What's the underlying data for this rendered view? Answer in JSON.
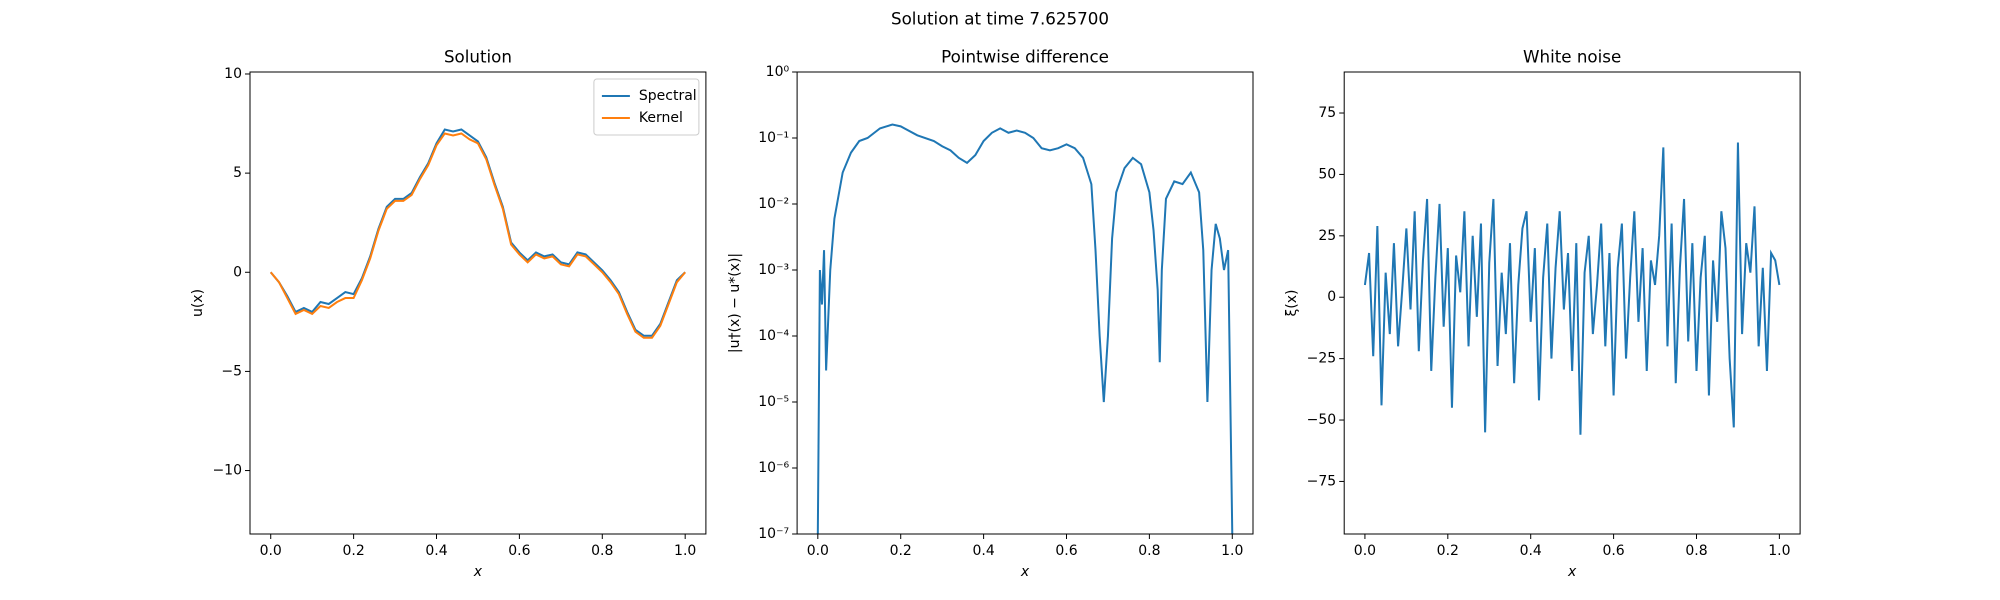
{
  "title": "Solution at time 7.625700",
  "chart_data": [
    {
      "type": "line",
      "title": "Solution",
      "xlabel": "x",
      "ylabel": "u(x)",
      "legend": "upper right",
      "xlim": [
        -0.05,
        1.05
      ],
      "ylim": [
        -13.2,
        10.1
      ],
      "xticks": [
        {
          "value": 0,
          "label": "0.0"
        },
        0.2,
        0.4,
        0.6,
        0.8,
        {
          "value": 1,
          "label": "1.0"
        }
      ],
      "yticks": [
        {
          "value": -10,
          "label": "−10"
        },
        {
          "value": -5,
          "label": "−5"
        },
        0,
        5,
        10
      ],
      "x": [
        0,
        0.02,
        0.04,
        0.06,
        0.08,
        0.1,
        0.12,
        0.14,
        0.16,
        0.18,
        0.2,
        0.22,
        0.24,
        0.26,
        0.28,
        0.3,
        0.32,
        0.34,
        0.36,
        0.38,
        0.4,
        0.42,
        0.44,
        0.46,
        0.48,
        0.5,
        0.52,
        0.54,
        0.56,
        0.58,
        0.6,
        0.62,
        0.64,
        0.66,
        0.68,
        0.7,
        0.72,
        0.74,
        0.76,
        0.78,
        0.8,
        0.82,
        0.84,
        0.86,
        0.88,
        0.9,
        0.92,
        0.94,
        0.96,
        0.98,
        1
      ],
      "series": [
        {
          "name": "Spectral",
          "color": "#1f77b4",
          "values": [
            0,
            -0.5,
            -1.2,
            -2.0,
            -1.8,
            -2.0,
            -1.5,
            -1.6,
            -1.3,
            -1.0,
            -1.1,
            -0.3,
            0.8,
            2.2,
            3.3,
            3.7,
            3.7,
            4.0,
            4.8,
            5.5,
            6.5,
            7.2,
            7.1,
            7.2,
            6.9,
            6.6,
            5.8,
            4.5,
            3.3,
            1.5,
            1.0,
            0.6,
            1.0,
            0.8,
            0.9,
            0.5,
            0.4,
            1.0,
            0.9,
            0.5,
            0.1,
            -0.4,
            -1.0,
            -2.0,
            -2.9,
            -3.2,
            -3.2,
            -2.6,
            -1.5,
            -0.4,
            0
          ]
        },
        {
          "name": "Kernel",
          "color": "#ff7f0e",
          "values": [
            0,
            -0.5,
            -1.3,
            -2.1,
            -1.9,
            -2.1,
            -1.7,
            -1.8,
            -1.5,
            -1.3,
            -1.3,
            -0.4,
            0.7,
            2.1,
            3.2,
            3.6,
            3.6,
            3.9,
            4.7,
            5.4,
            6.4,
            7.0,
            6.9,
            7.0,
            6.7,
            6.5,
            5.7,
            4.4,
            3.2,
            1.4,
            0.9,
            0.5,
            0.9,
            0.7,
            0.8,
            0.4,
            0.3,
            0.9,
            0.8,
            0.4,
            0.0,
            -0.5,
            -1.1,
            -2.1,
            -3.0,
            -3.3,
            -3.3,
            -2.7,
            -1.6,
            -0.5,
            0
          ]
        }
      ]
    },
    {
      "type": "line",
      "title": "Pointwise difference",
      "xlabel": "x",
      "ylabel": "|u†(x) − u*(x)|",
      "yscale": "log",
      "color": "#1f77b4",
      "xlim": [
        -0.05,
        1.05
      ],
      "ylim": [
        1e-07,
        1
      ],
      "xticks": [
        {
          "value": 0,
          "label": "0.0"
        },
        0.2,
        0.4,
        0.6,
        0.8,
        {
          "value": 1,
          "label": "1.0"
        }
      ],
      "yticks": [
        {
          "value": 1e-07,
          "label": "10⁻⁷"
        },
        {
          "value": 1e-06,
          "label": "10⁻⁶"
        },
        {
          "value": 1e-05,
          "label": "10⁻⁵"
        },
        {
          "value": 0.0001,
          "label": "10⁻⁴"
        },
        {
          "value": 0.001,
          "label": "10⁻³"
        },
        {
          "value": 0.01,
          "label": "10⁻²"
        },
        {
          "value": 0.1,
          "label": "10⁻¹"
        },
        {
          "value": 1,
          "label": "10⁰"
        }
      ],
      "x": [
        0,
        0.005,
        0.01,
        0.015,
        0.02,
        0.03,
        0.04,
        0.06,
        0.08,
        0.1,
        0.12,
        0.15,
        0.18,
        0.2,
        0.24,
        0.28,
        0.3,
        0.32,
        0.34,
        0.36,
        0.38,
        0.4,
        0.42,
        0.44,
        0.46,
        0.48,
        0.5,
        0.52,
        0.54,
        0.56,
        0.58,
        0.6,
        0.62,
        0.64,
        0.66,
        0.67,
        0.68,
        0.69,
        0.7,
        0.71,
        0.72,
        0.74,
        0.76,
        0.78,
        0.8,
        0.81,
        0.82,
        0.825,
        0.83,
        0.84,
        0.86,
        0.88,
        0.9,
        0.92,
        0.93,
        0.94,
        0.95,
        0.96,
        0.97,
        0.98,
        0.99,
        1
      ],
      "values": [
        1e-07,
        0.001,
        0.0003,
        0.002,
        3e-05,
        0.001,
        0.006,
        0.03,
        0.06,
        0.09,
        0.1,
        0.14,
        0.16,
        0.15,
        0.11,
        0.09,
        0.075,
        0.065,
        0.05,
        0.042,
        0.055,
        0.09,
        0.12,
        0.14,
        0.12,
        0.13,
        0.12,
        0.1,
        0.07,
        0.065,
        0.07,
        0.08,
        0.07,
        0.05,
        0.02,
        0.002,
        0.0001,
        1e-05,
        0.0001,
        0.003,
        0.015,
        0.035,
        0.05,
        0.04,
        0.015,
        0.004,
        0.0005,
        4e-05,
        0.001,
        0.012,
        0.022,
        0.02,
        0.03,
        0.015,
        0.002,
        1e-05,
        0.001,
        0.005,
        0.003,
        0.001,
        0.002,
        1e-07
      ]
    },
    {
      "type": "line",
      "title": "White noise",
      "xlabel": "x",
      "ylabel": "ξ(x)",
      "color": "#1f77b4",
      "xlim": [
        -0.05,
        1.05
      ],
      "ylim": [
        -96.4,
        91.7
      ],
      "xticks": [
        {
          "value": 0,
          "label": "0.0"
        },
        0.2,
        0.4,
        0.6,
        0.8,
        {
          "value": 1,
          "label": "1.0"
        }
      ],
      "yticks": [
        {
          "value": -75,
          "label": "−75"
        },
        {
          "value": -50,
          "label": "−50"
        },
        {
          "value": -25,
          "label": "−25"
        },
        0,
        25,
        50,
        75
      ],
      "x": [
        0,
        0.01,
        0.02,
        0.03,
        0.04,
        0.05,
        0.06,
        0.07,
        0.08,
        0.09,
        0.1,
        0.11,
        0.12,
        0.13,
        0.14,
        0.15,
        0.16,
        0.17,
        0.18,
        0.19,
        0.2,
        0.21,
        0.22,
        0.23,
        0.24,
        0.25,
        0.26,
        0.27,
        0.28,
        0.29,
        0.3,
        0.31,
        0.32,
        0.33,
        0.34,
        0.35,
        0.36,
        0.37,
        0.38,
        0.39,
        0.4,
        0.41,
        0.42,
        0.43,
        0.44,
        0.45,
        0.46,
        0.47,
        0.48,
        0.49,
        0.5,
        0.51,
        0.52,
        0.53,
        0.54,
        0.55,
        0.56,
        0.57,
        0.58,
        0.59,
        0.6,
        0.61,
        0.62,
        0.63,
        0.64,
        0.65,
        0.66,
        0.67,
        0.68,
        0.69,
        0.7,
        0.71,
        0.72,
        0.73,
        0.74,
        0.75,
        0.76,
        0.77,
        0.78,
        0.79,
        0.8,
        0.81,
        0.82,
        0.83,
        0.84,
        0.85,
        0.86,
        0.87,
        0.88,
        0.89,
        0.9,
        0.91,
        0.92,
        0.93,
        0.94,
        0.95,
        0.96,
        0.97,
        0.98,
        0.99,
        1
      ],
      "values": [
        5,
        18,
        -24,
        29,
        -44,
        10,
        -15,
        22,
        -20,
        3,
        28,
        -5,
        35,
        -22,
        15,
        40,
        -30,
        8,
        38,
        -12,
        20,
        -45,
        17,
        2,
        35,
        -20,
        25,
        -8,
        30,
        -55,
        14,
        40,
        -28,
        10,
        -15,
        22,
        -35,
        5,
        28,
        35,
        -10,
        20,
        -42,
        8,
        30,
        -25,
        12,
        35,
        -5,
        18,
        -30,
        22,
        -56,
        10,
        25,
        -15,
        5,
        30,
        -20,
        18,
        -40,
        12,
        30,
        -25,
        8,
        35,
        -10,
        20,
        -30,
        15,
        5,
        25,
        61,
        -20,
        30,
        -35,
        12,
        40,
        -18,
        22,
        -30,
        8,
        25,
        -40,
        15,
        -10,
        35,
        20,
        -25,
        -53,
        63,
        -15,
        22,
        10,
        37,
        -20,
        12,
        -30,
        18,
        15,
        5
      ]
    }
  ]
}
